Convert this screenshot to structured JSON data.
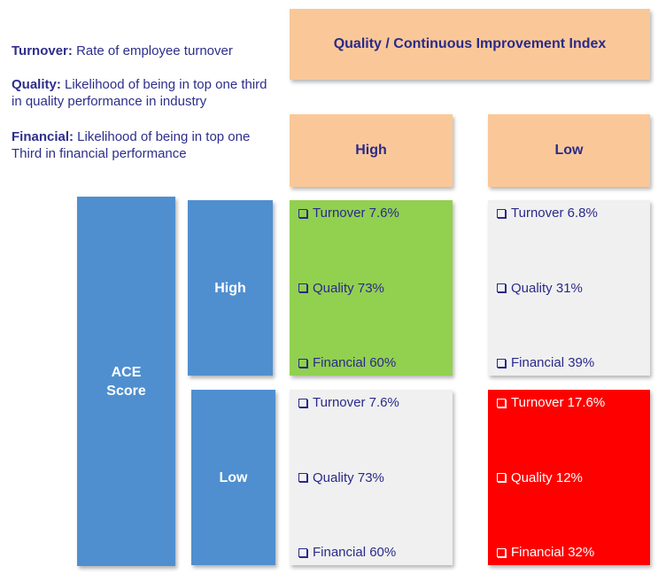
{
  "legend": [
    {
      "term": "Turnover:",
      "desc": " Rate of employee turnover"
    },
    {
      "term": "Quality:",
      "desc": "  Likelihood of being in top one third in quality performance in industry"
    },
    {
      "term": "Financial:",
      "desc": " Likelihood of being in top one Third in financial performance"
    }
  ],
  "header": {
    "index_title": "Quality / Continuous Improvement Index",
    "col_high": "High",
    "col_low": "Low"
  },
  "rows": {
    "ace_label_line1": "ACE",
    "ace_label_line2": "Score",
    "row_high": "High",
    "row_low": "Low"
  },
  "cells": {
    "high_high": {
      "color": "#92d050",
      "items": [
        "Turnover 7.6%",
        "Quality 73%",
        "Financial 60%"
      ]
    },
    "high_low": {
      "color": "#f0f0f0",
      "items": [
        "Turnover 6.8%",
        "Quality 31%",
        "Financial 39%"
      ]
    },
    "low_high": {
      "color": "#f0f0f0",
      "items": [
        "Turnover 7.6%",
        "Quality 73%",
        "Financial 60%"
      ]
    },
    "low_low": {
      "color": "#ff0000",
      "items": [
        "Turnover 17.6%",
        "Quality 12%",
        "Financial 32%"
      ]
    }
  }
}
